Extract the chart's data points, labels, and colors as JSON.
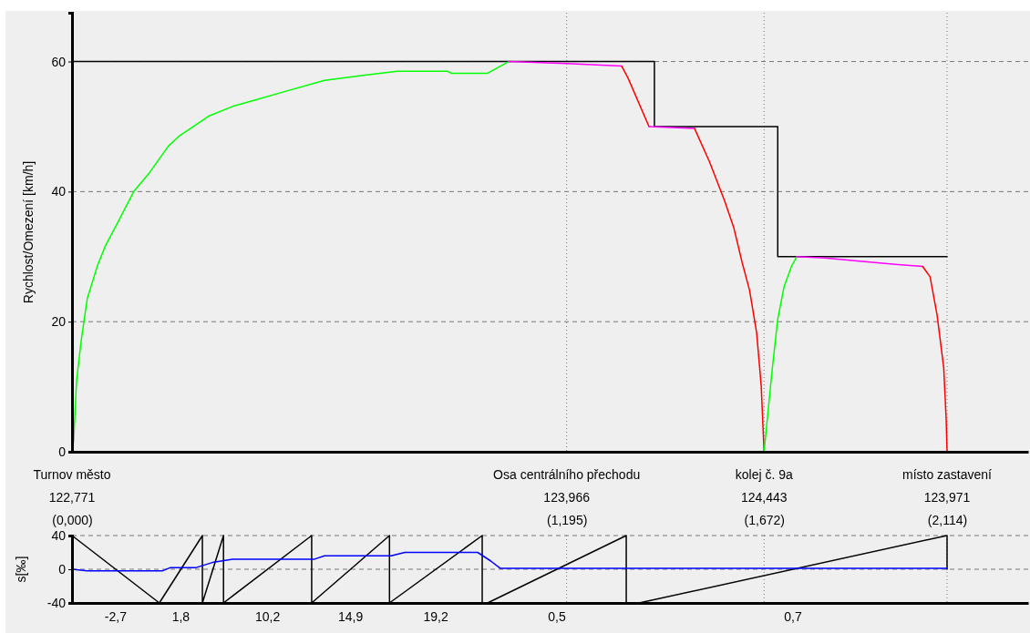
{
  "chart_data": [
    {
      "type": "line",
      "ylabel": "Rychlost/Omezení [km/h]",
      "xlim": [
        0,
        2.31
      ],
      "ylim": [
        0,
        67.5
      ],
      "yticks": [
        0,
        20,
        40,
        60
      ],
      "xticks": [
        {
          "value": 0,
          "label": "(0,000)"
        },
        {
          "value": 1.195,
          "label": "(1,195)"
        },
        {
          "value": 1.672,
          "label": "(1,672)"
        },
        {
          "value": 2.114,
          "label": "(2,114)"
        }
      ],
      "grid": true,
      "annotations": [
        "Turnov město\n122,771",
        "Osa centrálního přechodu\n123,966",
        "kolej č. 9a\n124,443",
        "místo zastavení\n123,971"
      ],
      "series": [
        {
          "color": "#000000",
          "x": [
            0,
            1.407,
            1.407,
            1.705,
            1.705,
            2.114
          ],
          "values": [
            60,
            60,
            50,
            50,
            30,
            30
          ]
        },
        {
          "color": "#00ff00",
          "x": [
            0,
            0.004,
            0.011,
            0.022,
            0.037,
            0.062,
            0.081,
            0.115,
            0.15,
            0.187,
            0.233,
            0.258,
            0.3,
            0.33,
            0.388,
            0.443,
            0.515,
            0.61,
            0.707,
            0.786,
            0.907,
            0.916,
            1.004,
            1.055
          ],
          "values": [
            0,
            1.7,
            10.9,
            17,
            23.6,
            28.7,
            31.7,
            35.8,
            40.1,
            42.9,
            47,
            48.5,
            50.3,
            51.6,
            53.1,
            54.1,
            55.4,
            57.1,
            57.9,
            58.5,
            58.5,
            58.2,
            58.2,
            60
          ]
        },
        {
          "color": "#ff00ff",
          "x": [
            1.055,
            1.195,
            1.328
          ],
          "values": [
            60,
            59.7,
            59.3
          ]
        },
        {
          "color": "#ff0000",
          "x": [
            1.328,
            1.343,
            1.394
          ],
          "values": [
            59.3,
            57.5,
            50
          ]
        },
        {
          "color": "#ff00ff",
          "x": [
            1.394,
            1.504
          ],
          "values": [
            50,
            49.7
          ]
        },
        {
          "color": "#ff0000",
          "x": [
            1.504,
            1.54,
            1.577,
            1.599,
            1.619,
            1.637,
            1.654,
            1.665,
            1.672
          ],
          "values": [
            49.7,
            44.6,
            38.5,
            34.4,
            29.1,
            24.8,
            18.3,
            10.2,
            0
          ]
        },
        {
          "color": "#00ff00",
          "x": [
            1.672,
            1.692,
            1.705,
            1.72,
            1.738,
            1.751
          ],
          "values": [
            0,
            12.9,
            20.4,
            25.3,
            28.5,
            30
          ]
        },
        {
          "color": "#ff00ff",
          "x": [
            1.751,
            1.819,
            1.903,
            1.989,
            2.055
          ],
          "values": [
            30,
            29.8,
            29.3,
            28.8,
            28.5
          ]
        },
        {
          "color": "#ff0000",
          "x": [
            2.055,
            2.073,
            2.09,
            2.106,
            2.112,
            2.114
          ],
          "values": [
            28.5,
            26.9,
            21,
            12.9,
            4.8,
            0
          ]
        }
      ]
    },
    {
      "type": "line",
      "ylabel": "s[‰]",
      "xlim": [
        0,
        2.31
      ],
      "ylim": [
        -40,
        40
      ],
      "yticks": [
        -40,
        0,
        40
      ],
      "annotations": [
        "-2,7",
        "1,8",
        "10,2",
        "14,9",
        "19,2",
        "0,5",
        "0,7"
      ],
      "grid": "y",
      "ref_lines": [
        {
          "axis": "x",
          "value": 1.195,
          "line_style": "dotted"
        },
        {
          "axis": "x",
          "value": 1.672,
          "line_style": "dotted"
        },
        {
          "axis": "x",
          "value": 2.114,
          "line_style": "dotted"
        }
      ],
      "series": [
        {
          "color": "#000000",
          "x": [
            0,
            0.211,
            0.315,
            0.315,
            0.366,
            0.366,
            0.579,
            0.579,
            0.767,
            0.767,
            0.991,
            0.991,
            1.004,
            1.339,
            1.339,
            1.37,
            2.114,
            2.114
          ],
          "values": [
            40,
            -40,
            40,
            -40,
            40,
            -40,
            40,
            -40,
            40,
            -40,
            40,
            -40,
            -40,
            40,
            -40,
            -40,
            40,
            0
          ]
        },
        {
          "color": "#0000ff",
          "x": [
            0,
            0.037,
            0.218,
            0.238,
            0.3,
            0.339,
            0.388,
            0.586,
            0.61,
            0.771,
            0.804,
            0.98,
            1.011,
            1.035,
            2.114
          ],
          "values": [
            0,
            -2,
            -2,
            2,
            2,
            8,
            12,
            12,
            16,
            16,
            20,
            20,
            10,
            1,
            1
          ]
        }
      ]
    }
  ]
}
